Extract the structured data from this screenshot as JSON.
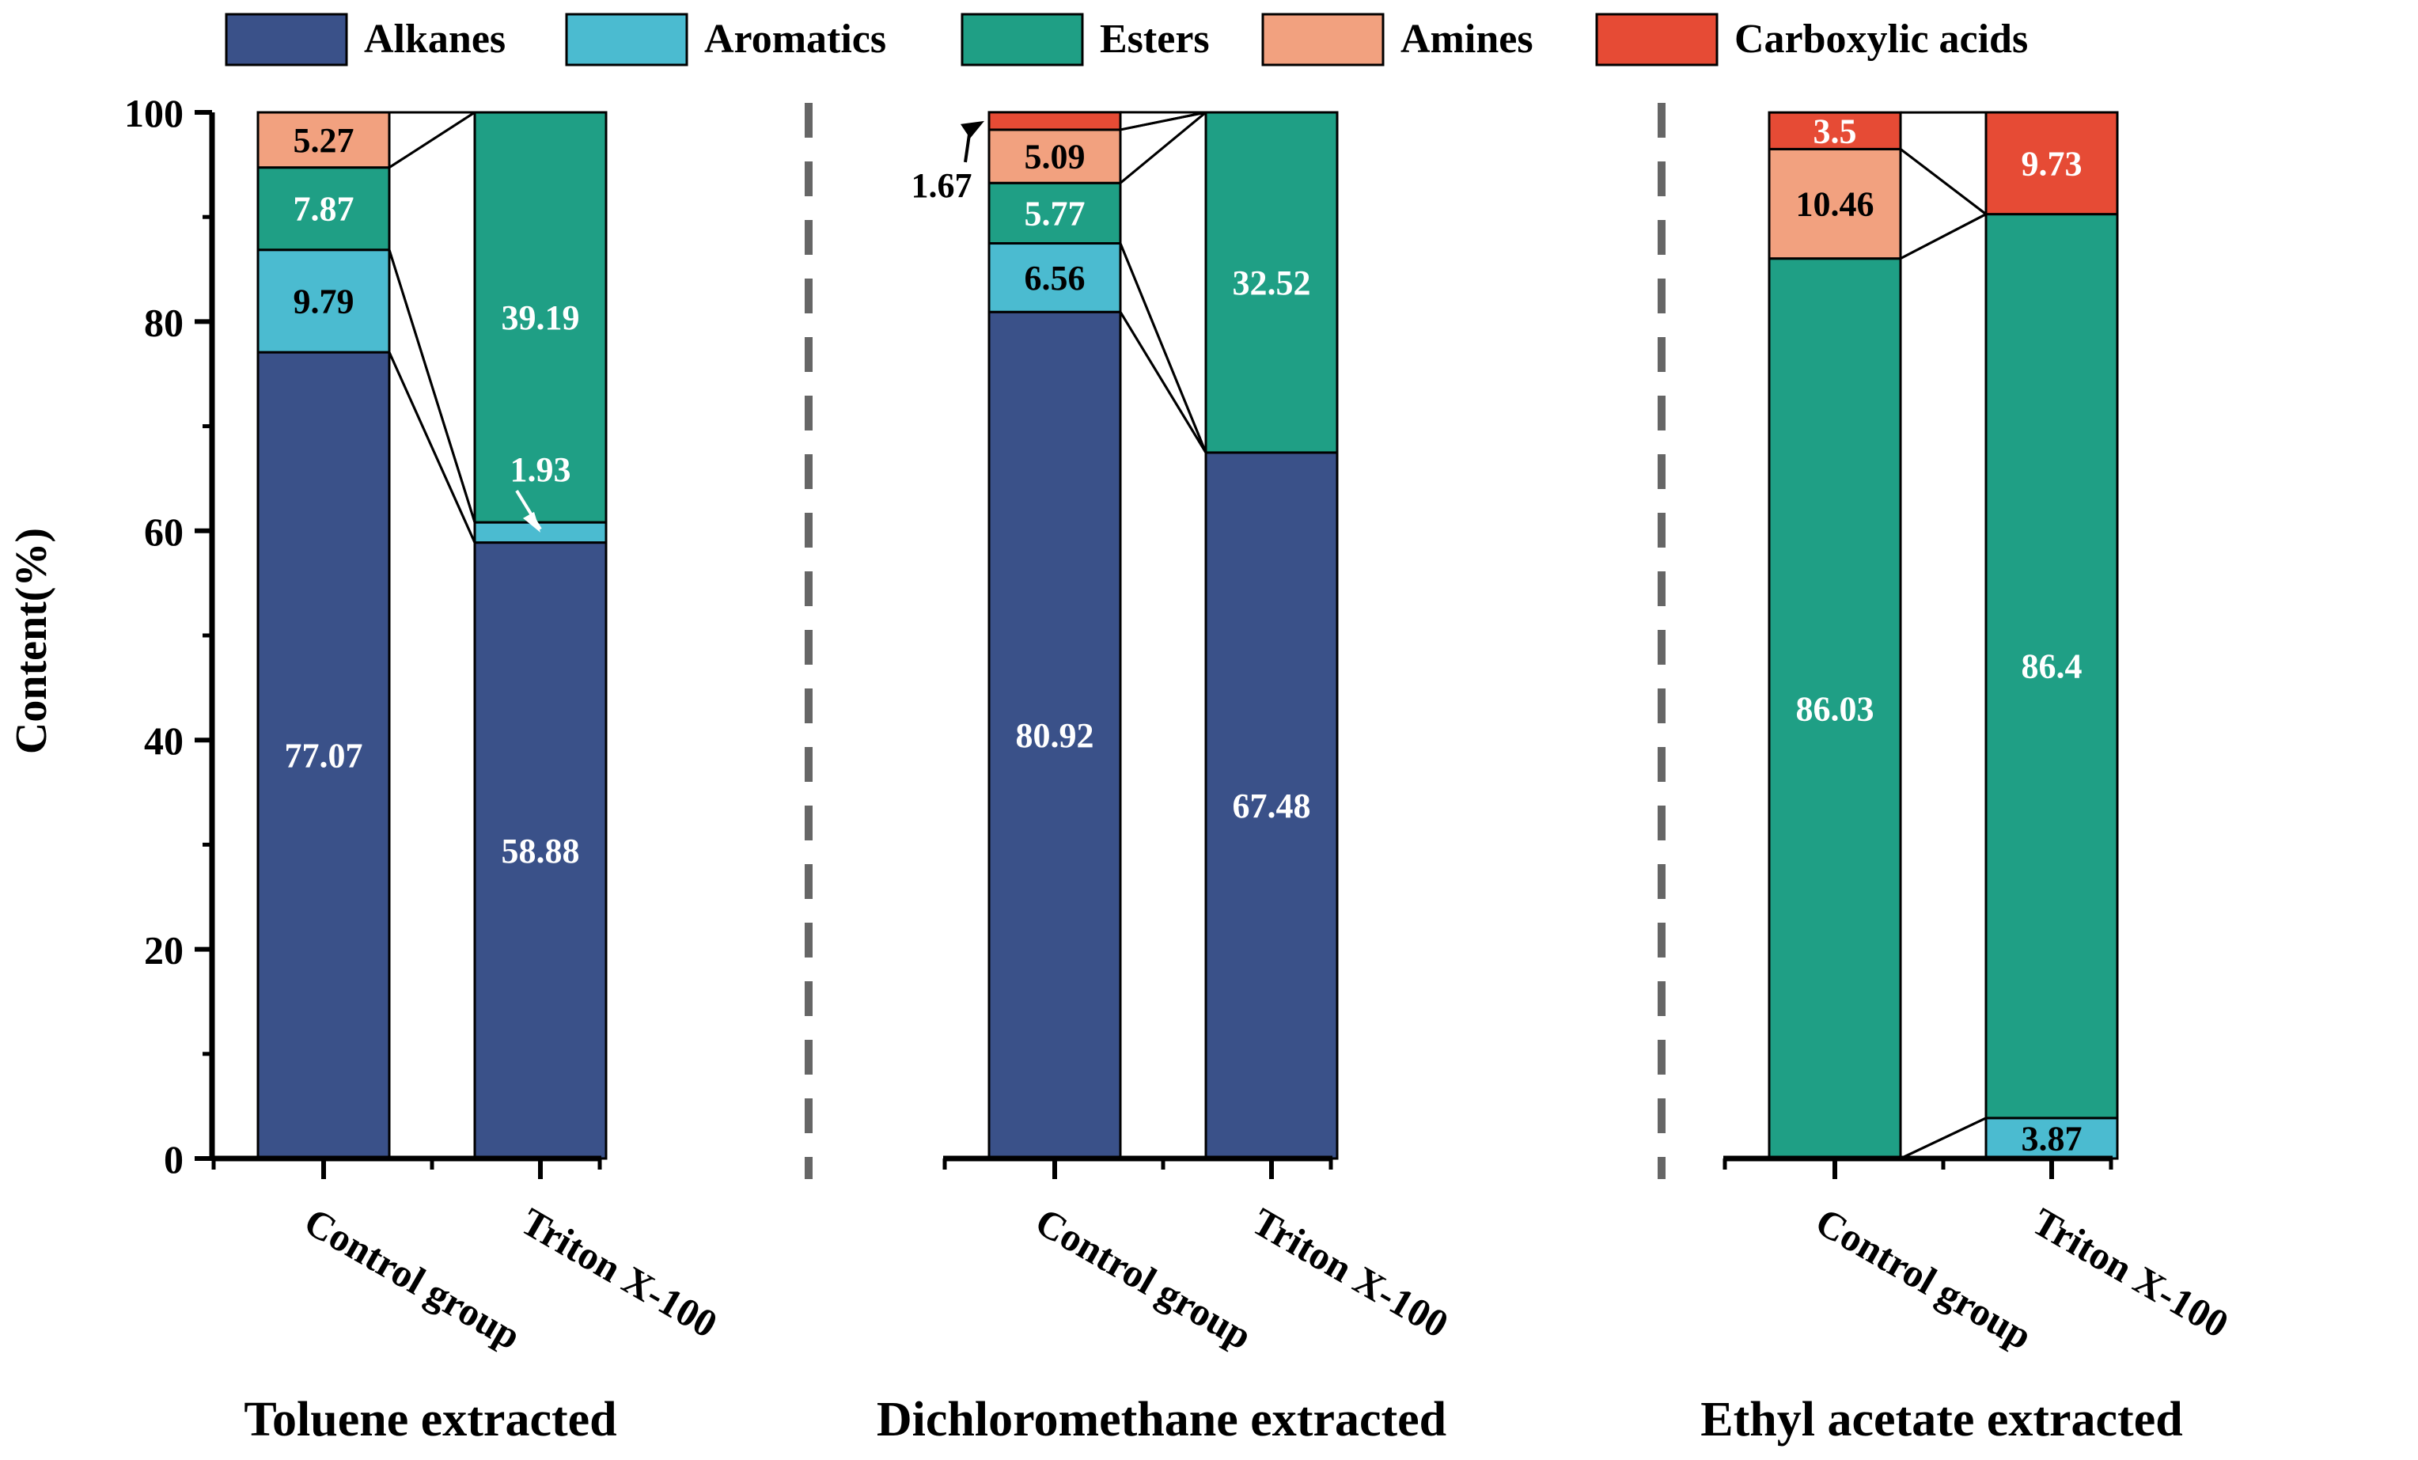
{
  "chart_data": {
    "type": "bar",
    "stacked": true,
    "ylabel": "Content(%)",
    "ylim": [
      0,
      100
    ],
    "yticks": [
      "0",
      "20",
      "40",
      "60",
      "80",
      "100"
    ],
    "categories": [
      "Control group",
      "Triton X-100"
    ],
    "legend": [
      {
        "name": "Alkanes",
        "color": "#3a5189"
      },
      {
        "name": "Aromatics",
        "color": "#4bbbd0"
      },
      {
        "name": "Esters",
        "color": "#1f9f85"
      },
      {
        "name": "Amines",
        "color": "#f2a17f"
      },
      {
        "name": "Carboxylic acids",
        "color": "#e64b35"
      }
    ],
    "panels": [
      {
        "title": "Toluene extracted",
        "bars": [
          {
            "category": "Control group",
            "values": {
              "Alkanes": 77.07,
              "Aromatics": 9.79,
              "Esters": 7.87,
              "Amines": 5.27,
              "Carboxylic acids": 0
            },
            "labels": [
              {
                "series": "Alkanes",
                "text": "77.07",
                "color": "#ffffff"
              },
              {
                "series": "Aromatics",
                "text": "9.79",
                "color": "#000000"
              },
              {
                "series": "Esters",
                "text": "7.87",
                "color": "#ffffff"
              },
              {
                "series": "Amines",
                "text": "5.27",
                "color": "#000000"
              }
            ]
          },
          {
            "category": "Triton X-100",
            "values": {
              "Alkanes": 58.88,
              "Aromatics": 1.93,
              "Esters": 39.19,
              "Amines": 0,
              "Carboxylic acids": 0
            },
            "labels": [
              {
                "series": "Alkanes",
                "text": "58.88",
                "color": "#ffffff"
              },
              {
                "series": "Esters",
                "text": "39.19",
                "color": "#ffffff"
              }
            ],
            "callouts": [
              {
                "series": "Aromatics",
                "text": "1.93",
                "color": "#ffffff"
              }
            ]
          }
        ]
      },
      {
        "title": "Dichloromethane extracted",
        "bars": [
          {
            "category": "Control group",
            "values": {
              "Alkanes": 80.92,
              "Aromatics": 6.56,
              "Esters": 5.77,
              "Amines": 5.09,
              "Carboxylic acids": 1.67
            },
            "labels": [
              {
                "series": "Alkanes",
                "text": "80.92",
                "color": "#ffffff"
              },
              {
                "series": "Aromatics",
                "text": "6.56",
                "color": "#000000"
              },
              {
                "series": "Esters",
                "text": "5.77",
                "color": "#ffffff"
              },
              {
                "series": "Amines",
                "text": "5.09",
                "color": "#000000"
              }
            ],
            "callouts": [
              {
                "series": "Carboxylic acids",
                "text": "1.67",
                "color": "#000000"
              }
            ]
          },
          {
            "category": "Triton X-100",
            "values": {
              "Alkanes": 67.48,
              "Aromatics": 0,
              "Esters": 32.52,
              "Amines": 0,
              "Carboxylic acids": 0
            },
            "labels": [
              {
                "series": "Alkanes",
                "text": "67.48",
                "color": "#ffffff"
              },
              {
                "series": "Esters",
                "text": "32.52",
                "color": "#ffffff"
              }
            ]
          }
        ]
      },
      {
        "title": "Ethyl acetate extracted",
        "bars": [
          {
            "category": "Control group",
            "values": {
              "Alkanes": 0,
              "Aromatics": 0,
              "Esters": 86.03,
              "Amines": 10.46,
              "Carboxylic acids": 3.5
            },
            "labels": [
              {
                "series": "Esters",
                "text": "86.03",
                "color": "#ffffff"
              },
              {
                "series": "Amines",
                "text": "10.46",
                "color": "#000000"
              },
              {
                "series": "Carboxylic acids",
                "text": "3.5",
                "color": "#ffffff"
              }
            ]
          },
          {
            "category": "Triton X-100",
            "values": {
              "Alkanes": 0,
              "Aromatics": 3.87,
              "Esters": 86.4,
              "Amines": 0,
              "Carboxylic acids": 9.73
            },
            "labels": [
              {
                "series": "Aromatics",
                "text": "3.87",
                "color": "#000000"
              },
              {
                "series": "Esters",
                "text": "86.4",
                "color": "#ffffff"
              },
              {
                "series": "Carboxylic acids",
                "text": "9.73",
                "color": "#ffffff"
              }
            ]
          }
        ]
      }
    ]
  }
}
